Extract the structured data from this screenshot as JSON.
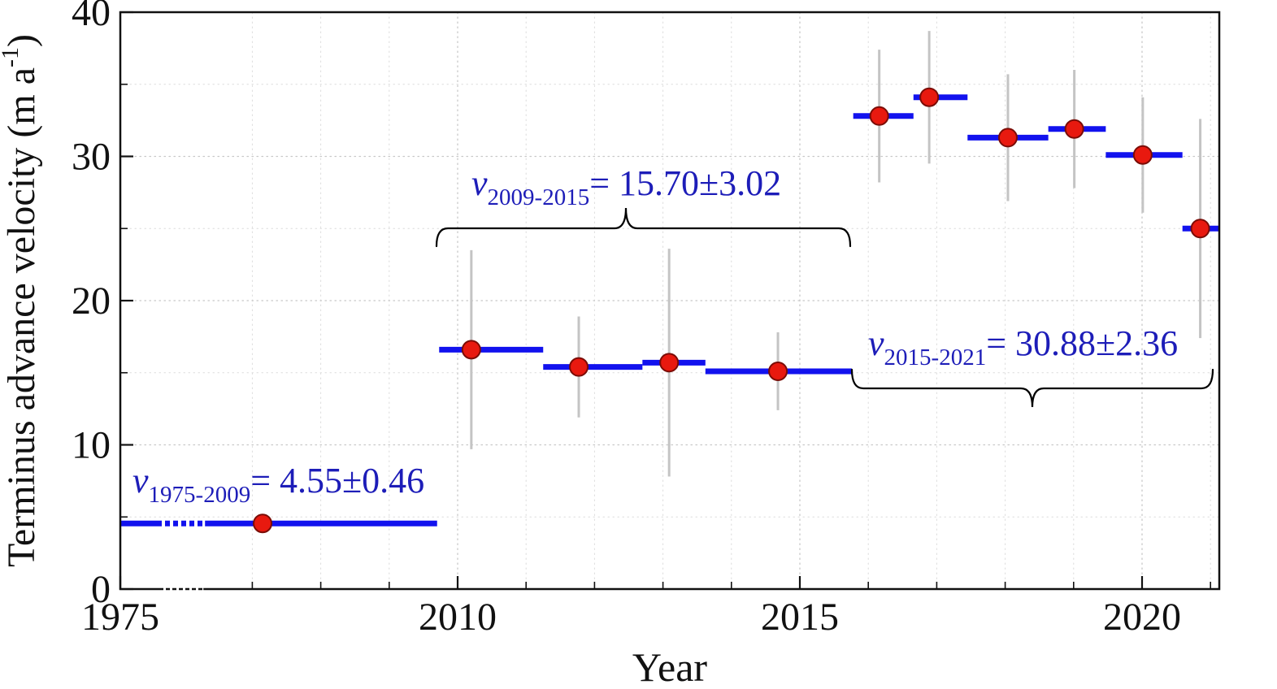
{
  "page": {
    "background": "#ffffff"
  },
  "chart_data": {
    "type": "scatter",
    "title": "",
    "xlabel": "Year",
    "ylabel": "Terminus advance velocity (m a-1)",
    "ylabel_parts": {
      "main": "Terminus advance velocity (m a",
      "sup": "-1",
      "close": ")"
    },
    "ylim": [
      0,
      40
    ],
    "xlim_display": [
      1975,
      2021.2
    ],
    "grid": "dotted",
    "axis_break": {
      "from": 1976,
      "to": 2006
    },
    "x_major_ticks": [
      {
        "year": 1975,
        "label": "1975"
      },
      {
        "year": 2010,
        "label": "2010"
      },
      {
        "year": 2015,
        "label": "2015"
      },
      {
        "year": 2020,
        "label": "2020"
      }
    ],
    "y_major_ticks": [
      {
        "value": 0,
        "label": "0"
      },
      {
        "value": 10,
        "label": "10"
      },
      {
        "value": 20,
        "label": "20"
      },
      {
        "value": 30,
        "label": "30"
      },
      {
        "value": 40,
        "label": "40"
      }
    ],
    "y_minor_tick_values": [
      5,
      15,
      25,
      35
    ],
    "points": [
      {
        "period": "1975-2009",
        "span_start": 1975,
        "span_end": 2009.7,
        "marker_x": 2007.15,
        "value": 4.55,
        "err": 0.46,
        "broken_span": true
      },
      {
        "period": "2010",
        "span_start": 2009.73,
        "span_end": 2011.25,
        "marker_x": 2010.2,
        "value": 16.6,
        "err": 6.9
      },
      {
        "period": "2011",
        "span_start": 2011.25,
        "span_end": 2012.7,
        "marker_x": 2011.77,
        "value": 15.4,
        "err": 3.5
      },
      {
        "period": "2013",
        "span_start": 2012.7,
        "span_end": 2013.62,
        "marker_x": 2013.09,
        "value": 15.7,
        "err": 7.9
      },
      {
        "period": "2014",
        "span_start": 2013.62,
        "span_end": 2015.76,
        "marker_x": 2014.68,
        "value": 15.1,
        "err": 2.7
      },
      {
        "period": "2016",
        "span_start": 2015.78,
        "span_end": 2016.66,
        "marker_x": 2016.16,
        "value": 32.8,
        "err": 4.6
      },
      {
        "period": "2017",
        "span_start": 2016.66,
        "span_end": 2017.45,
        "marker_x": 2016.89,
        "value": 34.1,
        "err": 4.6
      },
      {
        "period": "2018",
        "span_start": 2017.45,
        "span_end": 2018.63,
        "marker_x": 2018.04,
        "value": 31.3,
        "err": 4.4
      },
      {
        "period": "2019",
        "span_start": 2018.63,
        "span_end": 2019.47,
        "marker_x": 2019.01,
        "value": 31.9,
        "err": 4.1
      },
      {
        "period": "2020",
        "span_start": 2019.47,
        "span_end": 2020.59,
        "marker_x": 2020.01,
        "value": 30.1,
        "err": 4.0
      },
      {
        "period": "2021",
        "span_start": 2020.59,
        "span_end": 2021.13,
        "marker_x": 2020.85,
        "value": 25.0,
        "err": 7.6
      }
    ],
    "period_means": [
      {
        "var": "v",
        "sub": "1975-2009",
        "text": "= 4.55±0.46",
        "value": 4.55,
        "uncertainty": 0.46
      },
      {
        "var": "v",
        "sub": "2009-2015",
        "text": "= 15.70±3.02",
        "value": 15.7,
        "uncertainty": 3.02
      },
      {
        "var": "v",
        "sub": "2015-2021",
        "text": "= 30.88±2.36",
        "value": 30.88,
        "uncertainty": 2.36
      }
    ],
    "colors": {
      "bar": "#1212ee",
      "marker_fill": "#e8190f",
      "marker_edge": "#7a0c06",
      "error_bar": "#c4c4c4",
      "annotation": "#1d1db8",
      "axis": "#111111",
      "grid_minor": "#dcdcdc",
      "grid_major": "#c8c8c8",
      "brace": "#000000"
    }
  }
}
